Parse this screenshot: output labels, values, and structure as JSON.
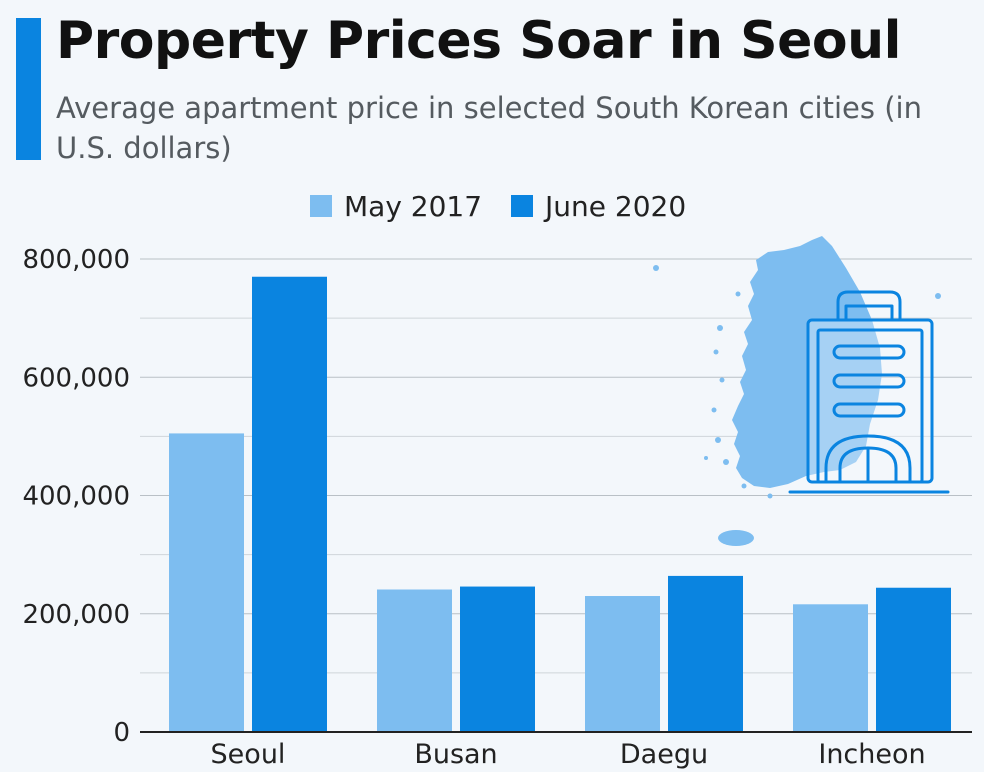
{
  "header": {
    "title": "Property Prices Soar in Seoul",
    "subtitle": "Average apartment price in selected South Korean cities (in U.S. dollars)"
  },
  "colors": {
    "accent": "#0a84e0",
    "series_light": "#7dbdf0",
    "series_dark": "#0a84e0",
    "icon": "#0a84e0",
    "map": "#7dbdf0"
  },
  "icons": {
    "map": "south-korea-map-icon",
    "building": "apartment-building-icon"
  },
  "chart_data": {
    "type": "bar",
    "categories": [
      "Seoul",
      "Busan",
      "Daegu",
      "Incheon"
    ],
    "series": [
      {
        "name": "May 2017",
        "values": [
          505000,
          241000,
          230000,
          216000
        ]
      },
      {
        "name": "June 2020",
        "values": [
          770000,
          246000,
          264000,
          244000
        ]
      }
    ],
    "yticks": [
      0,
      200000,
      400000,
      600000,
      800000
    ],
    "ytick_labels": [
      "0",
      "200,000",
      "400,000",
      "600,000",
      "800,000"
    ],
    "ylim": [
      0,
      800000
    ],
    "xlabel": "",
    "ylabel": "",
    "grid": true,
    "legend_position": "top-center"
  }
}
